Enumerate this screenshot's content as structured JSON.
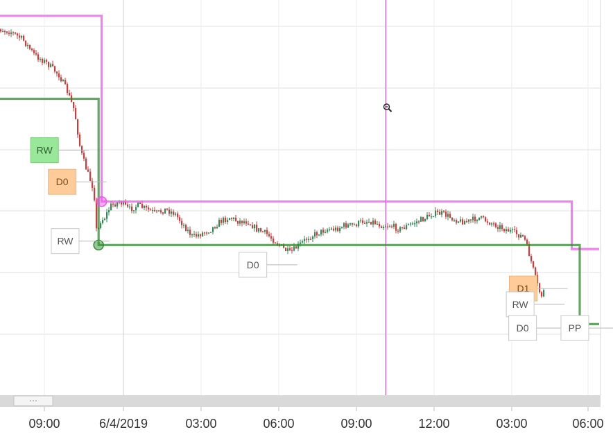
{
  "chart_data": {
    "type": "candlestick",
    "xlabel": "",
    "ylabel": "",
    "grid": true,
    "x_ticks": [
      "09:00",
      "6/4/2019",
      "03:00",
      "06:00",
      "09:00",
      "12:00",
      "03:00",
      "06:00"
    ],
    "y_range": [
      0,
      100
    ],
    "candle_path": [
      [
        0,
        93
      ],
      [
        3,
        92
      ],
      [
        5,
        90
      ],
      [
        7,
        86
      ],
      [
        9,
        84
      ],
      [
        11,
        81
      ],
      [
        12.3,
        77
      ],
      [
        13.5,
        72
      ],
      [
        14.5,
        62
      ],
      [
        15.5,
        57
      ],
      [
        16.7,
        52
      ],
      [
        17.2,
        40
      ],
      [
        17.7,
        44
      ],
      [
        18.5,
        45
      ],
      [
        19.5,
        48
      ],
      [
        21,
        49
      ],
      [
        22.5,
        47
      ],
      [
        24,
        48
      ],
      [
        25.5,
        47
      ],
      [
        27,
        46
      ],
      [
        28.5,
        47
      ],
      [
        30,
        46
      ],
      [
        31.5,
        43
      ],
      [
        33,
        40
      ],
      [
        34.5,
        41
      ],
      [
        36,
        42
      ],
      [
        37.5,
        44
      ],
      [
        39,
        45
      ],
      [
        40.5,
        44
      ],
      [
        42,
        44
      ],
      [
        43.5,
        42
      ],
      [
        45,
        41
      ],
      [
        46.5,
        39
      ],
      [
        48,
        37
      ],
      [
        49,
        36
      ],
      [
        50.5,
        38
      ],
      [
        52,
        40
      ],
      [
        53.5,
        41
      ],
      [
        55,
        42
      ],
      [
        56.5,
        42
      ],
      [
        58,
        43
      ],
      [
        59.5,
        43
      ],
      [
        61,
        44
      ],
      [
        62.5,
        44
      ],
      [
        64,
        43
      ],
      [
        65.5,
        43
      ],
      [
        67,
        42
      ],
      [
        68.5,
        43
      ],
      [
        70,
        44
      ],
      [
        71.5,
        45
      ],
      [
        72.5,
        46
      ],
      [
        74,
        46
      ],
      [
        75.5,
        45
      ],
      [
        77,
        44
      ],
      [
        78.5,
        44
      ],
      [
        80,
        45
      ],
      [
        81.5,
        44
      ],
      [
        83,
        43
      ],
      [
        84.5,
        42
      ],
      [
        86,
        41
      ],
      [
        87.5,
        40
      ],
      [
        88.5,
        35
      ],
      [
        89.5,
        29
      ],
      [
        90.3,
        25
      ],
      [
        91,
        27
      ]
    ],
    "levels": [
      {
        "name": "D0",
        "color": "#ee55ee",
        "steps": [
          [
            0,
            96
          ],
          [
            18.1,
            96
          ],
          [
            18.1,
            49
          ],
          [
            95.5,
            49
          ],
          [
            95.5,
            37
          ],
          [
            100,
            37
          ]
        ]
      },
      {
        "name": "RW",
        "color": "#2e8b2e",
        "steps": [
          [
            0,
            75
          ],
          [
            17.6,
            75
          ],
          [
            17.6,
            38
          ],
          [
            96.8,
            38
          ],
          [
            96.8,
            18
          ],
          [
            100,
            18
          ]
        ]
      }
    ],
    "markers": [
      {
        "x": 18.1,
        "y": 49,
        "color": "#ee55ee"
      },
      {
        "x": 17.6,
        "y": 38,
        "color": "#2e8b2e"
      }
    ],
    "crosshair_x": 64.8,
    "labels": [
      {
        "text": "RW",
        "style": "filled-green",
        "x": 8.7,
        "y": 62
      },
      {
        "text": "D0",
        "style": "filled-orange",
        "x": 11.6,
        "y": 54
      },
      {
        "text": "RW",
        "style": "outline",
        "x": 12.1,
        "y": 39
      },
      {
        "text": "D0",
        "style": "outline",
        "x": 43,
        "y": 33
      },
      {
        "text": "D1",
        "style": "filled-orange",
        "x": 87.5,
        "y": 27
      },
      {
        "text": "RW",
        "style": "outline",
        "x": 87,
        "y": 23
      },
      {
        "text": "D0",
        "style": "outline",
        "x": 87.4,
        "y": 17
      },
      {
        "text": "PP",
        "style": "outline",
        "x": 96,
        "y": 17
      }
    ],
    "colors": {
      "up": "#2e8b57",
      "down": "#d03a3a",
      "grid": "#e2e2e2",
      "crosshair": "#b03fb0"
    }
  }
}
